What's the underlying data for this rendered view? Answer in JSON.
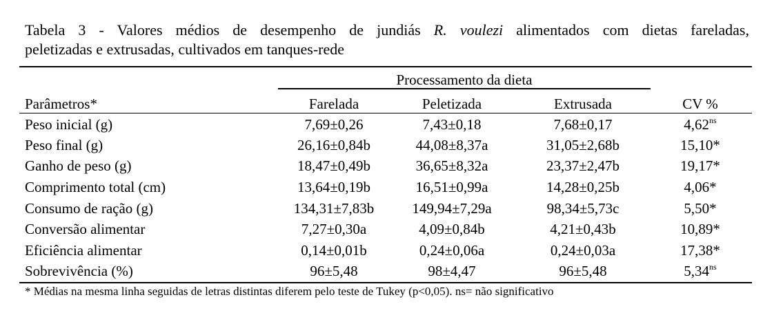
{
  "caption": {
    "prefix": "Tabela 3 - Valores médios de desempenho de jundiás ",
    "species": "R. voulezi",
    "suffix_line1": " alimentados com dietas fareladas,",
    "line2": "peletizadas e extrusadas, cultivados em tanques-rede"
  },
  "table": {
    "span_header": "Processamento da dieta",
    "headers": [
      "Parâmetros*",
      "Farelada",
      "Peletizada",
      "Extrusada",
      "CV %"
    ],
    "rows": [
      {
        "param": "Peso inicial (g)",
        "farelada": "7,69±0,26",
        "peletizada": "7,43±0,18",
        "extrusada": "7,68±0,17",
        "cv": "4,62",
        "cv_sup": "ns"
      },
      {
        "param": "Peso final (g)",
        "farelada": "26,16±0,84b",
        "peletizada": "44,08±8,37a",
        "extrusada": "31,05±2,68b",
        "cv": "15,10*",
        "cv_sup": ""
      },
      {
        "param": "Ganho de peso (g)",
        "farelada": "18,47±0,49b",
        "peletizada": "36,65±8,32a",
        "extrusada": "23,37±2,47b",
        "cv": "19,17*",
        "cv_sup": ""
      },
      {
        "param": "Comprimento total (cm)",
        "farelada": "13,64±0,19b",
        "peletizada": "16,51±0,99a",
        "extrusada": "14,28±0,25b",
        "cv": "4,06*",
        "cv_sup": ""
      },
      {
        "param": "Consumo de ração (g)",
        "farelada": "134,31±7,83b",
        "peletizada": "149,94±7,29a",
        "extrusada": "98,34±5,73c",
        "cv": "5,50*",
        "cv_sup": ""
      },
      {
        "param": "Conversão alimentar",
        "farelada": "7,27±0,30a",
        "peletizada": "4,09±0,84b",
        "extrusada": "4,21±0,43b",
        "cv": "10,89*",
        "cv_sup": ""
      },
      {
        "param": "Eficiência alimentar",
        "farelada": "0,14±0,01b",
        "peletizada": "0,24±0,06a",
        "extrusada": "0,24±0,03a",
        "cv": "17,38*",
        "cv_sup": ""
      },
      {
        "param": "Sobrevivência (%)",
        "farelada": "96±5,48",
        "peletizada": "98±4,47",
        "extrusada": "96±5,48",
        "cv": "5,34",
        "cv_sup": "ns"
      }
    ]
  },
  "footnote": "* Médias na mesma linha seguidas de letras distintas diferem pelo teste de Tukey (p<0,05). ns= não significativo"
}
